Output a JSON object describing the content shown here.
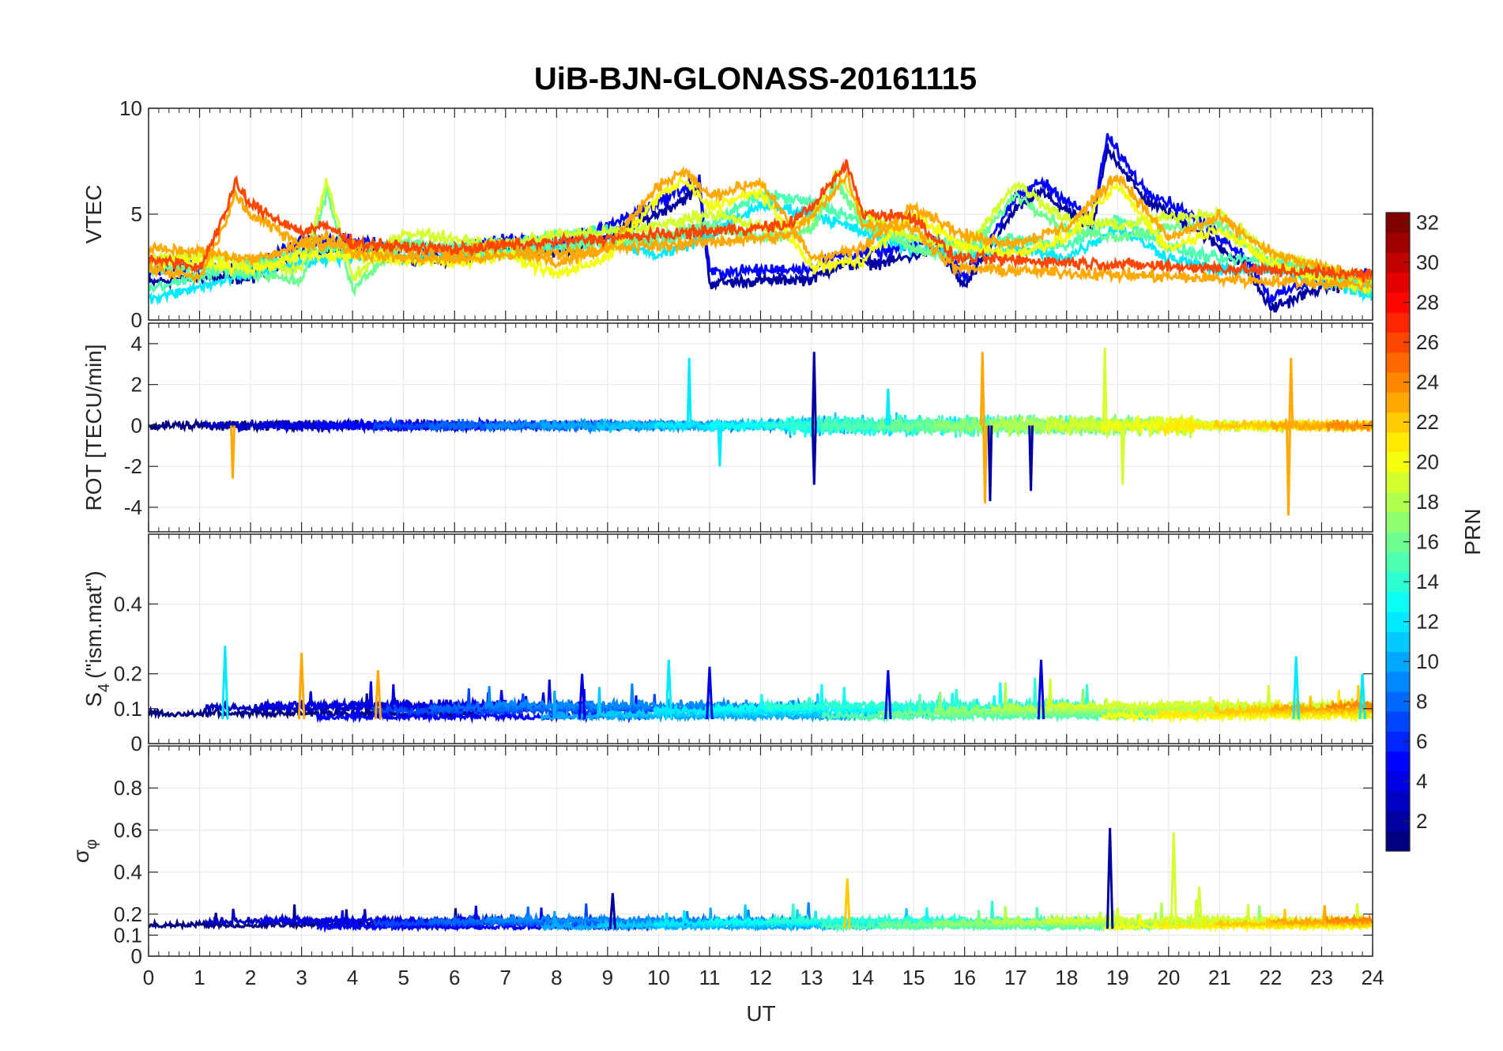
{
  "chart_data": {
    "type": "line",
    "title": "UiB-BJN-GLONASS-20161115",
    "xlabel": "UT",
    "xlim": [
      0,
      24
    ],
    "x_ticks": [
      "0",
      "1",
      "2",
      "3",
      "4",
      "5",
      "6",
      "7",
      "8",
      "9",
      "10",
      "11",
      "12",
      "13",
      "14",
      "15",
      "16",
      "17",
      "18",
      "19",
      "20",
      "21",
      "22",
      "23",
      "24"
    ],
    "grid": true,
    "panels": [
      {
        "ylabel": "VTEC",
        "ylim": [
          0,
          10
        ],
        "y_ticks": [
          "0",
          "5",
          "10"
        ],
        "y_tick_values": [
          0,
          5,
          10
        ],
        "series_summary": [
          {
            "prn": 2,
            "x": [
              0,
              1,
              2,
              3,
              4,
              5,
              6,
              7,
              8,
              9,
              10,
              10.8,
              11,
              13,
              13.5,
              14.5,
              15.5,
              16,
              17,
              17.5,
              18.5,
              18.8,
              19.5,
              20.5,
              21.5,
              22,
              23,
              24
            ],
            "y": [
              2,
              2.3,
              2.2,
              3.5,
              3.5,
              3.2,
              3.1,
              3.6,
              3.4,
              4.2,
              5.3,
              6.4,
              2,
              2.2,
              2.8,
              3,
              3.6,
              1.8,
              5.5,
              6.3,
              4.5,
              8.4,
              6,
              4.6,
              2.8,
              0.8,
              1.8,
              2
            ]
          },
          {
            "prn": 12,
            "x": [
              0,
              1,
              2,
              3,
              4,
              5,
              6,
              7,
              8,
              9,
              10,
              11,
              12,
              13,
              14,
              15,
              16,
              17,
              18,
              19,
              20,
              21,
              22,
              23,
              24
            ],
            "y": [
              1.2,
              1.8,
              2.4,
              2.9,
              3.3,
              3.2,
              3.2,
              3.4,
              3.7,
              4,
              3.3,
              4.2,
              5.7,
              5.3,
              4.4,
              3.6,
              3.3,
              3.6,
              3.2,
              4.6,
              3.2,
              2.6,
              2.6,
              2.1,
              1.4
            ]
          },
          {
            "prn": 16,
            "x": [
              0,
              1,
              2,
              3,
              3.5,
              4,
              5,
              6,
              7,
              8,
              9,
              10,
              11,
              12,
              13,
              13.5,
              14,
              15,
              16,
              17,
              18,
              19,
              20,
              21,
              22,
              23,
              24
            ],
            "y": [
              2.6,
              2.8,
              2.4,
              2.1,
              6.3,
              1.7,
              3.9,
              3.6,
              3.3,
              3.8,
              3.9,
              4.2,
              4.8,
              4.1,
              4.5,
              6.8,
              4.8,
              3.6,
              3.1,
              6.2,
              4.5,
              4.2,
              4.6,
              4.8,
              2.9,
              2.3,
              1.6
            ]
          },
          {
            "prn": 20,
            "x": [
              0,
              1,
              2,
              3,
              4,
              5,
              6,
              7,
              8,
              9,
              10,
              10.5,
              11,
              12,
              13,
              14,
              15,
              16,
              17,
              18,
              19,
              20,
              21,
              22,
              23,
              24
            ],
            "y": [
              3.1,
              3,
              2.6,
              3.3,
              3.3,
              3.1,
              2.9,
              3.4,
              2.4,
              3.2,
              6.1,
              6.8,
              5.6,
              6.3,
              2.7,
              3.1,
              5.2,
              3.7,
              3.4,
              4.1,
              6.6,
              3.6,
              4.6,
              2.9,
              2.2,
              1.7
            ]
          },
          {
            "prn": 23,
            "x": [
              0,
              1,
              1.5,
              1.7,
              2,
              3,
              3.5,
              4,
              5,
              6,
              12.5,
              13,
              13.7,
              14,
              15,
              15.8,
              24
            ],
            "y": [
              2.7,
              2.2,
              4.8,
              6.2,
              5.2,
              3.9,
              4.2,
              3.4,
              3.2,
              3.1,
              4.2,
              5.1,
              7.1,
              4.8,
              4.6,
              2.7,
              1.9
            ]
          }
        ]
      },
      {
        "ylabel": "ROT [TECU/min]",
        "ylim": [
          -5.2,
          5
        ],
        "y_ticks": [
          "-4",
          "-2",
          "0",
          "2",
          "4"
        ],
        "y_tick_values": [
          -4,
          -2,
          0,
          2,
          4
        ],
        "series_summary": [
          {
            "prn": 2,
            "spikes": [
              [
                13.05,
                3.6
              ],
              [
                13.05,
                -2.9
              ],
              [
                17.3,
                -3.2
              ],
              [
                16.5,
                -3.7
              ]
            ]
          },
          {
            "prn": 12,
            "spikes": [
              [
                10.6,
                3.3
              ],
              [
                11.2,
                -2.0
              ],
              [
                14.5,
                1.8
              ]
            ]
          },
          {
            "prn": 19,
            "spikes": [
              [
                18.75,
                3.8
              ],
              [
                19.1,
                -2.9
              ]
            ]
          },
          {
            "prn": 23,
            "spikes": [
              [
                16.35,
                3.6
              ],
              [
                16.4,
                -3.8
              ],
              [
                22.4,
                3.3
              ],
              [
                22.35,
                -4.4
              ],
              [
                1.65,
                -2.6
              ]
            ]
          }
        ]
      },
      {
        "ylabel": "S4 (\"ism.mat\")",
        "ylabel_main": "S",
        "ylabel_sub": "4",
        "ylabel_rest": "(\"ism.mat\")",
        "ylim": [
          0,
          0.6
        ],
        "y_ticks": [
          "0",
          "0.1",
          "0.2",
          "0.4"
        ],
        "y_tick_values": [
          0,
          0.1,
          0.2,
          0.4
        ],
        "series_summary": [
          {
            "prn": 12,
            "peaks": [
              [
                1.5,
                0.28
              ],
              [
                10.2,
                0.24
              ],
              [
                22.5,
                0.25
              ],
              [
                23.8,
                0.2
              ]
            ]
          },
          {
            "prn": 23,
            "peaks": [
              [
                3.0,
                0.26
              ],
              [
                4.5,
                0.21
              ]
            ]
          },
          {
            "prn": 4,
            "peaks": [
              [
                8.5,
                0.2
              ],
              [
                11,
                0.22
              ],
              [
                14.5,
                0.21
              ],
              [
                17.5,
                0.24
              ]
            ]
          }
        ]
      },
      {
        "ylabel": "σφ",
        "ylabel_main": "σ",
        "ylabel_sub": "φ",
        "ylim": [
          0,
          1
        ],
        "y_ticks": [
          "0",
          "0.1",
          "0.2",
          "0.4",
          "0.6",
          "0.8"
        ],
        "y_tick_values": [
          0,
          0.1,
          0.2,
          0.4,
          0.6,
          0.8
        ],
        "series_summary": [
          {
            "prn": 2,
            "peaks": [
              [
                18.85,
                0.61
              ],
              [
                9.1,
                0.3
              ]
            ]
          },
          {
            "prn": 19,
            "peaks": [
              [
                20.1,
                0.59
              ],
              [
                20.6,
                0.33
              ]
            ]
          },
          {
            "prn": 22,
            "peaks": [
              [
                13.7,
                0.37
              ]
            ]
          }
        ]
      }
    ],
    "colorbar": {
      "label": "PRN",
      "range": [
        1,
        32
      ],
      "colormap": "jet",
      "ticks": [
        "2",
        "4",
        "6",
        "8",
        "10",
        "12",
        "14",
        "16",
        "18",
        "20",
        "22",
        "24",
        "26",
        "28",
        "30",
        "32"
      ]
    }
  }
}
